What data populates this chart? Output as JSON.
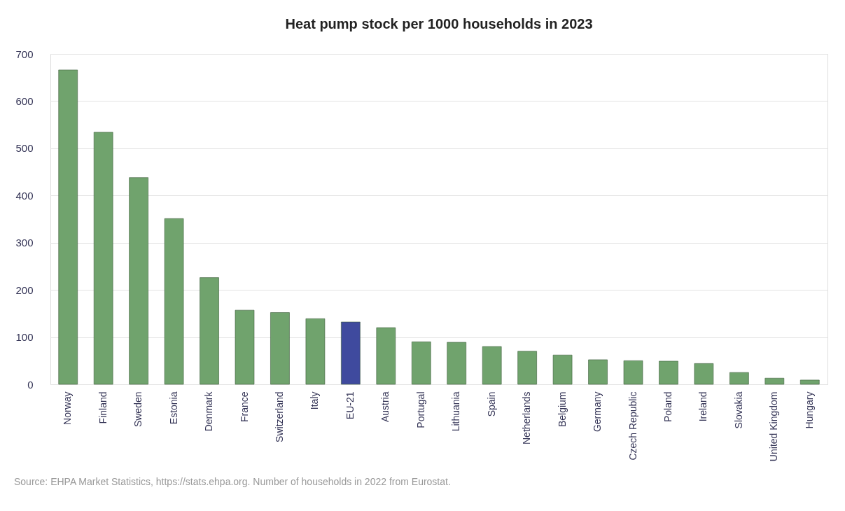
{
  "chart_data": {
    "type": "bar",
    "title": "Heat pump stock per 1000 households in 2023",
    "categories": [
      "Norway",
      "Finland",
      "Sweden",
      "Estonia",
      "Denmark",
      "France",
      "Switzerland",
      "Italy",
      "EU-21",
      "Austria",
      "Portugal",
      "Lithuania",
      "Spain",
      "Netherlands",
      "Belgium",
      "Germany",
      "Czech Republic",
      "Poland",
      "Ireland",
      "Slovakia",
      "United Kingdom",
      "Hungary"
    ],
    "values": [
      666,
      534,
      438,
      351,
      226,
      157,
      152,
      139,
      132,
      120,
      90,
      89,
      80,
      70,
      62,
      52,
      50,
      49,
      44,
      25,
      13,
      9
    ],
    "colors": [
      "#70a36d",
      "#70a36d",
      "#70a36d",
      "#70a36d",
      "#70a36d",
      "#70a36d",
      "#70a36d",
      "#70a36d",
      "#3f4a9e",
      "#70a36d",
      "#70a36d",
      "#70a36d",
      "#70a36d",
      "#70a36d",
      "#70a36d",
      "#70a36d",
      "#70a36d",
      "#70a36d",
      "#70a36d",
      "#70a36d",
      "#70a36d",
      "#70a36d"
    ],
    "ylim": [
      0,
      700
    ],
    "yticks": [
      0,
      100,
      200,
      300,
      400,
      500,
      600,
      700
    ],
    "grid": "y",
    "annotations": [
      "Source: EHPA Market Statistics, https://stats.ehpa.org. Number of households in 2022 from Eurostat."
    ]
  }
}
